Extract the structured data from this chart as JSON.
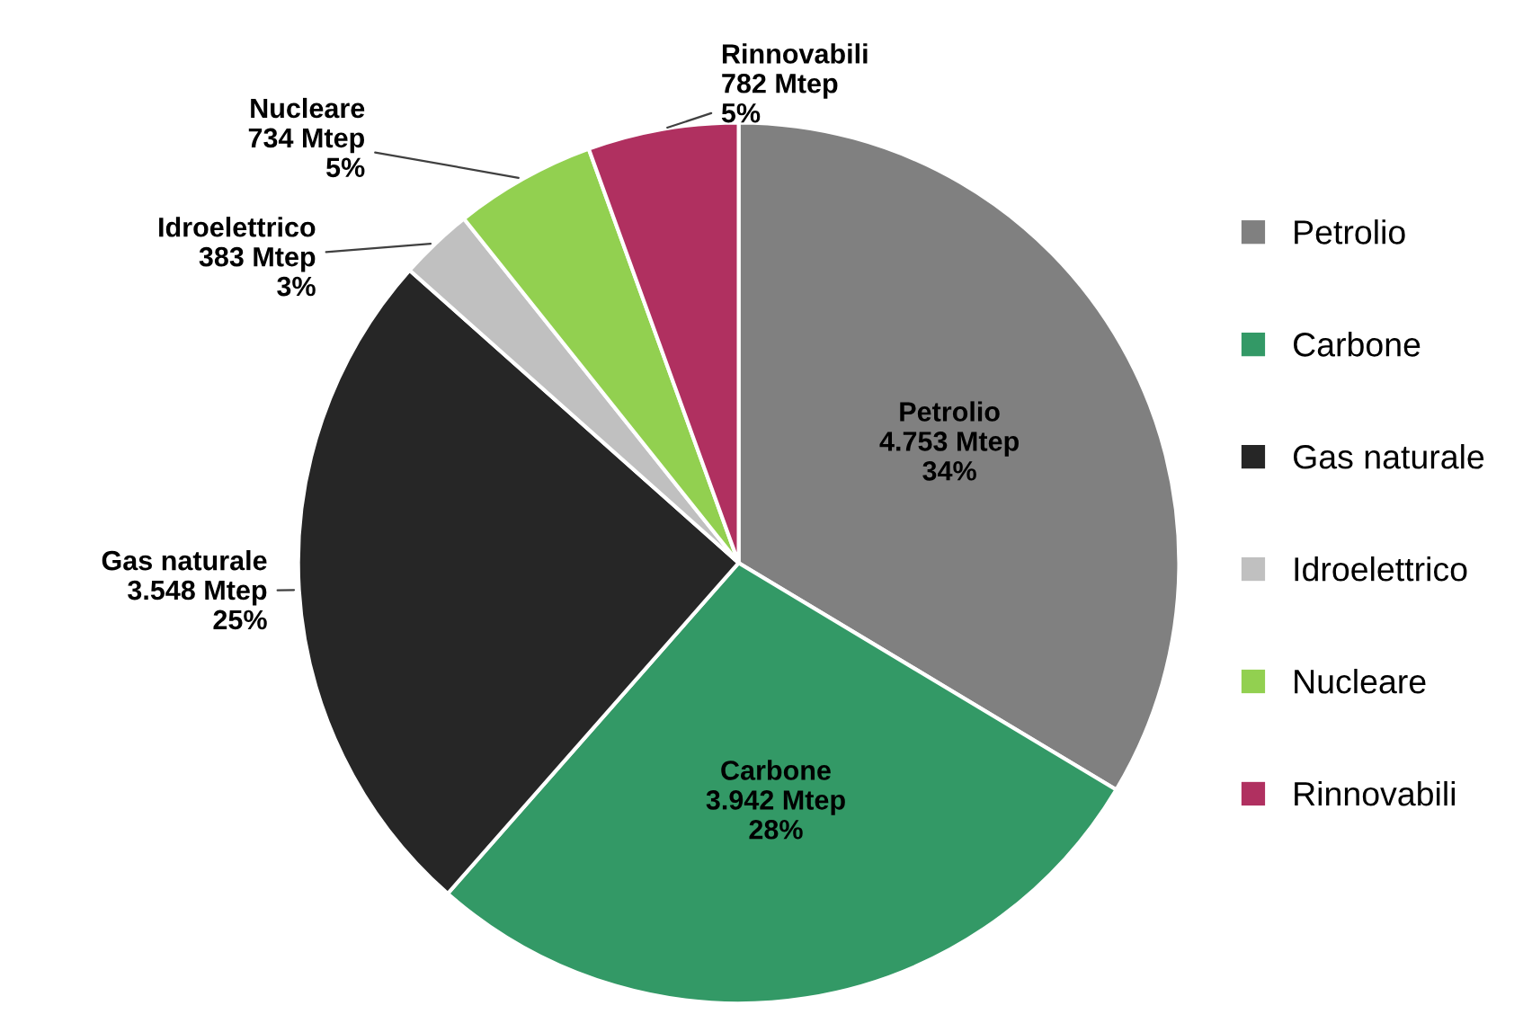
{
  "chart_data": {
    "type": "pie",
    "categories": [
      "Petrolio",
      "Carbone",
      "Gas naturale",
      "Idroelettrico",
      "Nucleare",
      "Rinnovabili"
    ],
    "values": [
      4753,
      3942,
      3548,
      383,
      734,
      782
    ],
    "colors": [
      "#808080",
      "#339966",
      "#262626",
      "#c0c0c0",
      "#92d050",
      "#b03060"
    ],
    "value_labels": [
      "4.753 Mtep\n34%",
      "3.942 Mtep\n28%",
      "3.548 Mtep\n25%",
      "383 Mtep\n3%",
      "734 Mtep\n5%",
      "782 Mtep\n5%"
    ],
    "legend": "right"
  }
}
